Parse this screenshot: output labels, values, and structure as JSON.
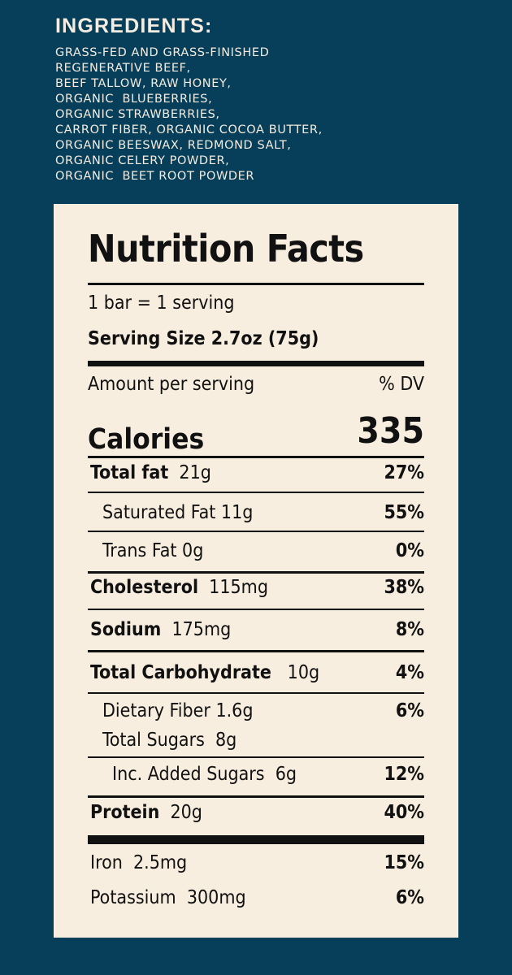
{
  "ingredients": {
    "title": "INGREDIENTS:",
    "lines": [
      "GRASS-FED AND GRASS-FINISHED",
      "REGENERATIVE BEEF,",
      "BEEF TALLOW, RAW HONEY,",
      "ORGANIC  BLUEBERRIES,",
      "ORGANIC STRAWBERRIES,",
      "CARROT FIBER, ORGANIC COCOA BUTTER,",
      "ORGANIC BEESWAX, REDMOND SALT,",
      "ORGANIC CELERY POWDER,",
      "ORGANIC  BEET ROOT POWDER"
    ]
  },
  "nutrition": {
    "title": "Nutrition Facts",
    "servings": "1 bar = 1 serving",
    "serving_size": "Serving Size 2.7oz (75g)",
    "amount_per_serving": "Amount per serving",
    "dv_header": "% DV",
    "calories_label": "Calories",
    "calories_value": "335",
    "rows": {
      "total_fat": {
        "label": "Total fat",
        "amount": "21g",
        "dv": "27%"
      },
      "saturated_fat": {
        "label": "Saturated Fat 11g",
        "dv": "55%"
      },
      "trans_fat": {
        "label": "Trans Fat 0g",
        "dv": "0%"
      },
      "cholesterol": {
        "label": "Cholesterol",
        "amount": "115mg",
        "dv": "38%"
      },
      "sodium": {
        "label": "Sodium",
        "amount": "175mg",
        "dv": "8%"
      },
      "total_carb": {
        "label": "Total Carbohydrate",
        "amount": "10g",
        "dv": "4%"
      },
      "dietary_fiber": {
        "label": "Dietary Fiber 1.6g",
        "dv": "6%"
      },
      "total_sugars": {
        "label": "Total Sugars  8g"
      },
      "added_sugars": {
        "label": "Inc. Added Sugars  6g",
        "dv": "12%"
      },
      "protein": {
        "label": "Protein",
        "amount": "20g",
        "dv": "40%"
      },
      "iron": {
        "label": "Iron  2.5mg",
        "dv": "15%"
      },
      "potassium": {
        "label": "Potassium  300mg",
        "dv": "6%"
      }
    }
  },
  "colors": {
    "background": "#073f5a",
    "panel": "#f8eee0",
    "ingredients_text": "#f4ece0",
    "label_text": "#111111"
  }
}
